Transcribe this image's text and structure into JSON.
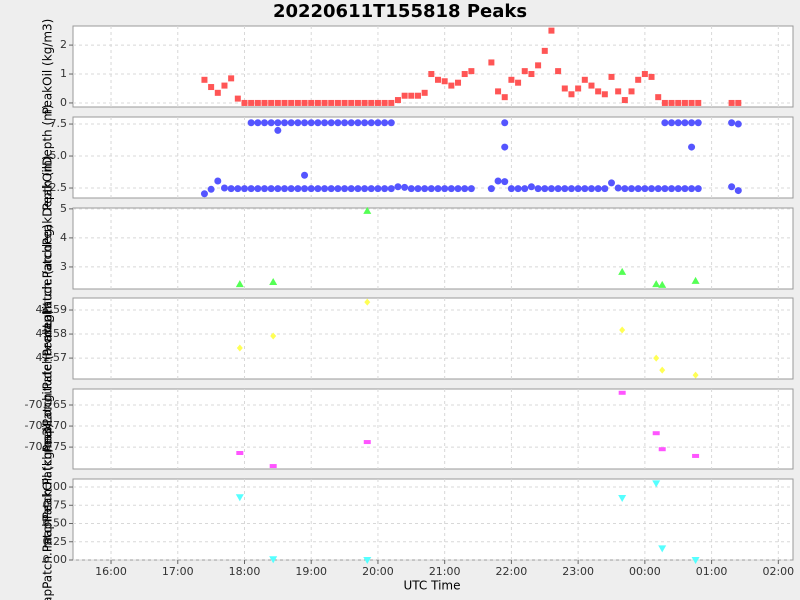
{
  "chart_data": [
    {
      "type": "scatter",
      "title": "20220611T155818 Peaks",
      "ylabel": "PeakOil (kg/m3)",
      "marker": "square",
      "color": "#ff5555",
      "xlim": [
        15.43,
        26.22
      ],
      "ylim": [
        -0.14,
        2.66
      ],
      "yticks": [
        0,
        1,
        2
      ],
      "grid": true,
      "x": [
        17.4,
        17.5,
        17.6,
        17.7,
        17.8,
        17.9,
        18,
        18.1,
        18.2,
        18.3,
        18.4,
        18.5,
        18.6,
        18.7,
        18.8,
        18.9,
        19,
        19.1,
        19.2,
        19.3,
        19.4,
        19.5,
        19.6,
        19.7,
        19.8,
        19.9,
        20,
        20.1,
        20.2,
        20.3,
        20.4,
        20.5,
        20.6,
        20.7,
        20.8,
        20.9,
        21,
        21.1,
        21.2,
        21.3,
        21.4,
        21.5,
        21.6,
        21.7,
        21.8,
        21.9,
        22,
        22.1,
        22.2,
        22.3,
        22.4,
        22.5,
        22.6,
        22.7,
        22.8,
        22.9,
        23,
        23.1,
        23.2,
        23.3,
        23.4,
        23.5,
        23.6,
        23.7,
        23.8,
        23.9,
        24,
        24.1,
        24.2,
        24.3,
        24.4,
        24.5,
        24.6,
        24.7,
        24.8,
        25.3,
        25.4
      ],
      "values": [
        0.8,
        0.55,
        0.35,
        0.6,
        0.85,
        0.15,
        0,
        0,
        0,
        0,
        0,
        0,
        0,
        0,
        0,
        0,
        0,
        0,
        0,
        0,
        0,
        0,
        0,
        0,
        0,
        0,
        0,
        0,
        0,
        0.1,
        0.25,
        0.25,
        0.25,
        0.35,
        1.0,
        0.8,
        0.75,
        0.6,
        0.7,
        1.0,
        1.1,
        null,
        null,
        1.4,
        0.4,
        0.2,
        0.8,
        0.7,
        1.1,
        1.0,
        1.3,
        1.8,
        2.5,
        1.1,
        0.5,
        0.3,
        0.5,
        0.8,
        0.6,
        0.4,
        0.3,
        0.9,
        0.4,
        0.1,
        0.4,
        0.8,
        1.0,
        0.9,
        0.2,
        0,
        0,
        0,
        0,
        0,
        0,
        0,
        0
      ]
    },
    {
      "type": "scatter",
      "ylabel": "PeakOilDepth (m)",
      "marker": "circle",
      "xlim": [
        15.43,
        26.22
      ],
      "ylim": [
        1.72,
        8.05
      ],
      "yticks": [
        2.5,
        {
          "value": 5,
          "label": "5.0"
        },
        7.5
      ],
      "grid": true,
      "x": [
        17.4,
        17.5,
        17.6,
        17.7,
        17.8,
        17.9,
        18,
        18.1,
        18.2,
        18.3,
        18.4,
        18.5,
        18.6,
        18.7,
        18.8,
        18.9,
        19,
        19.1,
        19.2,
        19.3,
        19.4,
        19.5,
        19.6,
        19.7,
        19.8,
        19.9,
        20,
        20.1,
        20.2,
        20.3,
        20.4,
        20.5,
        20.6,
        20.7,
        20.8,
        20.9,
        21,
        21.1,
        21.2,
        21.3,
        21.4,
        21.5,
        21.6,
        21.7,
        21.8,
        21.9,
        22,
        22.1,
        22.2,
        22.3,
        22.4,
        22.5,
        22.6,
        22.7,
        22.8,
        22.9,
        23,
        23.1,
        23.2,
        23.3,
        23.4,
        23.5,
        23.6,
        23.7,
        23.8,
        23.9,
        24,
        24.1,
        24.2,
        24.3,
        24.4,
        24.5,
        24.6,
        24.7,
        24.8,
        25.3,
        25.4
      ],
      "series": [
        {
          "color": "#5555ff",
          "values": [
            null,
            null,
            null,
            null,
            null,
            null,
            null,
            7.6,
            7.6,
            7.6,
            7.6,
            7.6,
            7.6,
            7.6,
            7.6,
            7.6,
            7.6,
            7.6,
            7.6,
            7.6,
            7.6,
            7.6,
            7.6,
            7.6,
            7.6,
            7.6,
            7.6,
            7.6,
            7.6,
            null,
            null,
            null,
            null,
            null,
            null,
            null,
            null,
            null,
            null,
            null,
            null,
            null,
            null,
            null,
            null,
            7.6,
            null,
            null,
            null,
            null,
            null,
            null,
            null,
            null,
            null,
            null,
            null,
            null,
            null,
            null,
            null,
            null,
            null,
            null,
            null,
            null,
            null,
            null,
            null,
            7.6,
            7.6,
            7.6,
            7.6,
            7.6,
            7.6,
            7.6,
            7.5
          ]
        },
        {
          "color": "#5555ff",
          "values": [
            2.05,
            2.4,
            3.05,
            2.5,
            2.45,
            2.45,
            2.45,
            2.45,
            2.45,
            2.45,
            2.45,
            2.45,
            2.45,
            2.45,
            2.45,
            2.45,
            2.45,
            2.45,
            2.45,
            2.45,
            2.45,
            2.45,
            2.45,
            2.45,
            2.45,
            2.45,
            2.45,
            2.45,
            2.45,
            2.6,
            2.55,
            2.45,
            2.45,
            2.45,
            2.45,
            2.45,
            2.45,
            2.45,
            2.45,
            2.45,
            2.45,
            null,
            null,
            2.45,
            3.05,
            3.0,
            2.45,
            2.45,
            2.45,
            2.6,
            2.45,
            2.45,
            2.45,
            2.45,
            2.45,
            2.45,
            2.45,
            2.45,
            2.45,
            2.45,
            2.45,
            2.9,
            2.5,
            2.45,
            2.45,
            2.45,
            2.45,
            2.45,
            2.45,
            2.45,
            2.45,
            2.45,
            2.45,
            2.45,
            2.45,
            2.6,
            2.3
          ]
        },
        {
          "color": "#5555ff",
          "x": [
            18.5,
            18.9,
            21.9,
            24.7
          ],
          "values": [
            7.0,
            3.5,
            5.7,
            5.7
          ]
        }
      ]
    },
    {
      "type": "scatter",
      "ylabel": "mapPatch.PatchPeakDepth (m)",
      "marker": "triangle",
      "color": "#55ff55",
      "xlim": [
        15.43,
        26.22
      ],
      "ylim": [
        2.24,
        5.03
      ],
      "yticks": [
        3,
        4,
        5
      ],
      "grid": true,
      "x": [
        17.93,
        18.43,
        19.84,
        23.66,
        24.17,
        24.26,
        24.76
      ],
      "values": [
        2.41,
        2.48,
        4.93,
        2.83,
        2.41,
        2.38,
        2.52
      ]
    },
    {
      "type": "scatter",
      "ylabel": "mapPatch.PatchPeakLatitude (arcdeg)",
      "marker": "diamond",
      "color": "#ffff55",
      "xlim": [
        15.43,
        26.22
      ],
      "ylim": [
        41.5613,
        41.595
      ],
      "yticks": [
        41.57,
        41.58,
        41.59
      ],
      "grid": true,
      "x": [
        17.93,
        18.43,
        19.84,
        23.66,
        24.17,
        24.26,
        24.76
      ],
      "values": [
        41.5742,
        41.5792,
        41.5933,
        41.5817,
        41.57,
        41.565,
        41.5629
      ]
    },
    {
      "type": "scatter",
      "ylabel": "mapPatch.PatchPeakLongitude (arcdeg)",
      "marker": "rect",
      "color": "#ff55ff",
      "xlim": [
        15.43,
        26.22
      ],
      "ylim": [
        -70.7802,
        -70.7612
      ],
      "yticks": [
        -70.775,
        {
          "value": -70.77,
          "label": "-70.770"
        },
        -70.765
      ],
      "grid": true,
      "x": [
        17.93,
        18.43,
        19.84,
        23.66,
        24.17,
        24.26,
        24.76
      ],
      "values": [
        -70.7764,
        -70.7795,
        -70.7738,
        -70.7621,
        -70.7717,
        -70.7755,
        -70.7771
      ]
    },
    {
      "type": "scatter",
      "ylabel": "mapPatch.PatchPeakOil (kg/m3)",
      "xlabel": "UTC Time",
      "marker": "triangle-down",
      "color": "#55ffff",
      "xlim": [
        15.43,
        26.22
      ],
      "ylim": [
        0,
        1.11
      ],
      "xticks": [
        {
          "value": 16,
          "label": "16:00"
        },
        {
          "value": 17,
          "label": "17:00"
        },
        {
          "value": 18,
          "label": "18:00"
        },
        {
          "value": 19,
          "label": "19:00"
        },
        {
          "value": 20,
          "label": "20:00"
        },
        {
          "value": 21,
          "label": "21:00"
        },
        {
          "value": 22,
          "label": "22:00"
        },
        {
          "value": 23,
          "label": "23:00"
        },
        {
          "value": 24,
          "label": "00:00"
        },
        {
          "value": 25,
          "label": "01:00"
        },
        {
          "value": 26,
          "label": "02:00"
        }
      ],
      "yticks": [
        {
          "value": 0,
          "label": "0.00"
        },
        0.25,
        {
          "value": 0.5,
          "label": "0.50"
        },
        0.75,
        {
          "value": 1,
          "label": "1.00"
        }
      ],
      "grid": true,
      "x": [
        17.93,
        18.43,
        19.84,
        23.66,
        24.17,
        24.26,
        24.76
      ],
      "values": [
        0.86,
        0.01,
        0,
        0.85,
        1.05,
        0.16,
        0
      ]
    }
  ]
}
